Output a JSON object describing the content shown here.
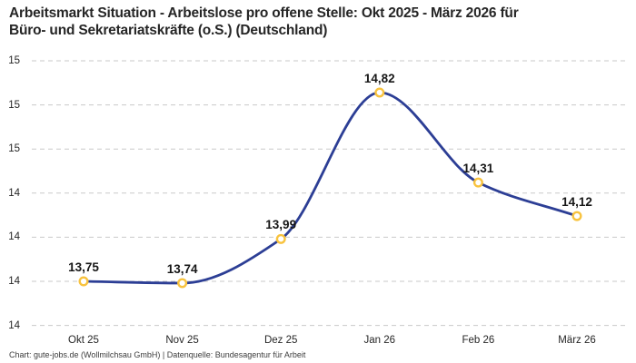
{
  "header": {
    "title_lines": [
      "Arbeitsmarkt Situation - Arbeitslose pro offene Stelle: Okt 2025 - März 2026 für",
      "Büro- und Sekretariatskräfte (o.S.) (Deutschland)"
    ]
  },
  "footer": {
    "text": "Chart: gute-jobs.de (Wollmilchsau GmbH) | Datenquelle: Bundesagentur für Arbeit"
  },
  "colors": {
    "line": "#2c3e95",
    "marker_ring": "#f8c33f",
    "marker_fill": "#ffffff",
    "grid": "#c9c9c9",
    "title_text": "#262626",
    "tick_text": "#262626",
    "value_label_text": "#161616"
  },
  "chart_data": {
    "type": "line",
    "title": "Arbeitsmarkt Situation - Arbeitslose pro offene Stelle: Okt 2025 - März 2026 für Büro- und Sekretariatskräfte (o.S.) (Deutschland)",
    "categories": [
      "Okt 25",
      "Nov 25",
      "Dez 25",
      "Jan 26",
      "Feb 26",
      "März 26"
    ],
    "values": [
      13.75,
      13.74,
      13.99,
      14.82,
      14.31,
      14.12
    ],
    "value_labels": [
      "13,75",
      "13,74",
      "13,99",
      "14,82",
      "14,31",
      "14,12"
    ],
    "xlabel": "",
    "ylabel": "",
    "ylim": [
      13.5,
      15.0
    ],
    "y_axis_ticks": [
      {
        "value": 15.0,
        "label": "15"
      },
      {
        "value": 14.75,
        "label": "15"
      },
      {
        "value": 14.5,
        "label": "15"
      },
      {
        "value": 14.25,
        "label": "14"
      },
      {
        "value": 14.0,
        "label": "14"
      },
      {
        "value": 13.75,
        "label": "14"
      },
      {
        "value": 13.5,
        "label": "14"
      }
    ],
    "grid": "dashed-horizontal",
    "legend_position": "none",
    "interpolation": "monotone"
  }
}
